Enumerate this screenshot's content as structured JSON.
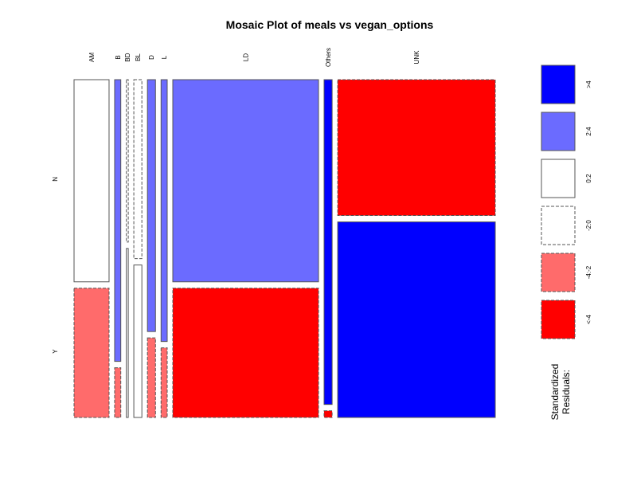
{
  "chart_data": {
    "type": "mosaic",
    "title": "Mosaic Plot of meals vs vegan_options",
    "x_variable": "meals",
    "y_variable": "vegan_options",
    "x_categories": [
      "AM",
      "B",
      "BD",
      "BL",
      "D",
      "L",
      "LD",
      "Others",
      "UNK"
    ],
    "y_categories": [
      "N",
      "Y"
    ],
    "column_proportions": [
      0.074,
      0.013,
      0.004,
      0.017,
      0.017,
      0.013,
      0.308,
      0.017,
      0.333
    ],
    "cells": [
      {
        "meals": "AM",
        "vegan_options": "N",
        "share": 0.61,
        "residual_class": "0:2"
      },
      {
        "meals": "AM",
        "vegan_options": "Y",
        "share": 0.39,
        "residual_class": "-4:-2"
      },
      {
        "meals": "B",
        "vegan_options": "N",
        "share": 0.85,
        "residual_class": "2:4"
      },
      {
        "meals": "B",
        "vegan_options": "Y",
        "share": 0.15,
        "residual_class": "-4:-2"
      },
      {
        "meals": "BD",
        "vegan_options": "N",
        "share": 0.49,
        "residual_class": "-2:0"
      },
      {
        "meals": "BD",
        "vegan_options": "Y",
        "share": 0.51,
        "residual_class": "0:2"
      },
      {
        "meals": "BL",
        "vegan_options": "N",
        "share": 0.54,
        "residual_class": "-2:0"
      },
      {
        "meals": "BL",
        "vegan_options": "Y",
        "share": 0.46,
        "residual_class": "0:2"
      },
      {
        "meals": "D",
        "vegan_options": "N",
        "share": 0.76,
        "residual_class": "2:4"
      },
      {
        "meals": "D",
        "vegan_options": "Y",
        "share": 0.24,
        "residual_class": "-4:-2"
      },
      {
        "meals": "L",
        "vegan_options": "N",
        "share": 0.79,
        "residual_class": "2:4"
      },
      {
        "meals": "L",
        "vegan_options": "Y",
        "share": 0.21,
        "residual_class": "-4:-2"
      },
      {
        "meals": "LD",
        "vegan_options": "N",
        "share": 0.61,
        "residual_class": "2:4"
      },
      {
        "meals": "LD",
        "vegan_options": "Y",
        "share": 0.39,
        "residual_class": "<-4"
      },
      {
        "meals": "Others",
        "vegan_options": "N",
        "share": 0.98,
        "residual_class": ">4"
      },
      {
        "meals": "Others",
        "vegan_options": "Y",
        "share": 0.02,
        "residual_class": "<-4"
      },
      {
        "meals": "UNK",
        "vegan_options": "N",
        "share": 0.41,
        "residual_class": "<-4"
      },
      {
        "meals": "UNK",
        "vegan_options": "Y",
        "share": 0.59,
        "residual_class": ">4"
      }
    ],
    "legend": {
      "title_line1": "Standardized",
      "title_line2": "Residuals:",
      "placement": "right",
      "items": [
        {
          "label": ">4",
          "color": "#0000FF",
          "dashed": false
        },
        {
          "label": "2:4",
          "color": "#6B6BFF",
          "dashed": false
        },
        {
          "label": "0:2",
          "color": "#FFFFFF",
          "dashed": false
        },
        {
          "label": "-2:0",
          "color": "#FFFFFF",
          "dashed": true
        },
        {
          "label": "-4:-2",
          "color": "#FF6B6B",
          "dashed": true
        },
        {
          "label": "<-4",
          "color": "#FF0000",
          "dashed": true
        }
      ]
    }
  }
}
